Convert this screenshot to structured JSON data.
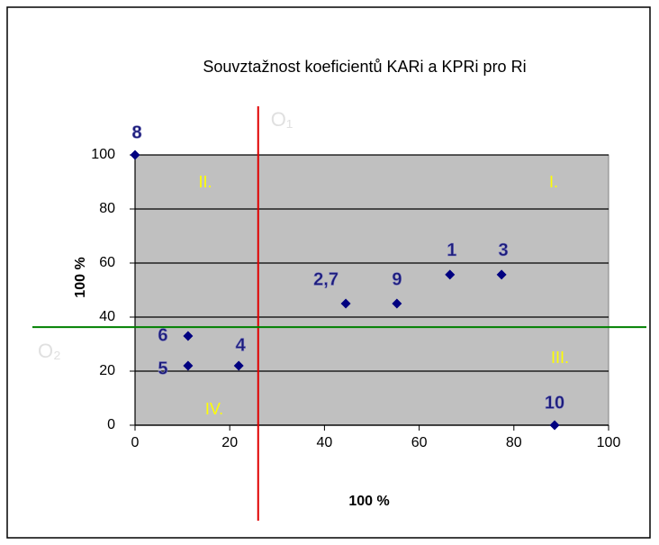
{
  "chart_data": {
    "type": "scatter",
    "title": "Souvztažnost koeficientů KARi a KPRi pro Ri",
    "x_label": "100 %",
    "y_label": "100 %",
    "xlim": [
      0,
      100
    ],
    "ylim": [
      0,
      100
    ],
    "xticks": [
      0,
      20,
      40,
      60,
      80,
      100
    ],
    "yticks": [
      0,
      20,
      40,
      60,
      80,
      100
    ],
    "grid": true,
    "color": "#000080",
    "background": "#c0c0c0",
    "x": [
      0,
      11.2,
      11.2,
      21.9,
      44.5,
      55.3,
      66.5,
      77.4,
      88.6
    ],
    "values": [
      100,
      33,
      22,
      22,
      45,
      45,
      55.7,
      55.7,
      0
    ],
    "point_labels": [
      "8",
      "6",
      "5",
      "4",
      "2,7",
      "9",
      "1",
      "3",
      "10"
    ],
    "vertical_line": {
      "x": 26,
      "color": "#e00000",
      "label": "O₁"
    },
    "horizontal_line": {
      "y": 36.3,
      "color": "#008000",
      "label": "O₂"
    },
    "quadrant_labels": [
      "I.",
      "II.",
      "III.",
      "IV."
    ]
  }
}
